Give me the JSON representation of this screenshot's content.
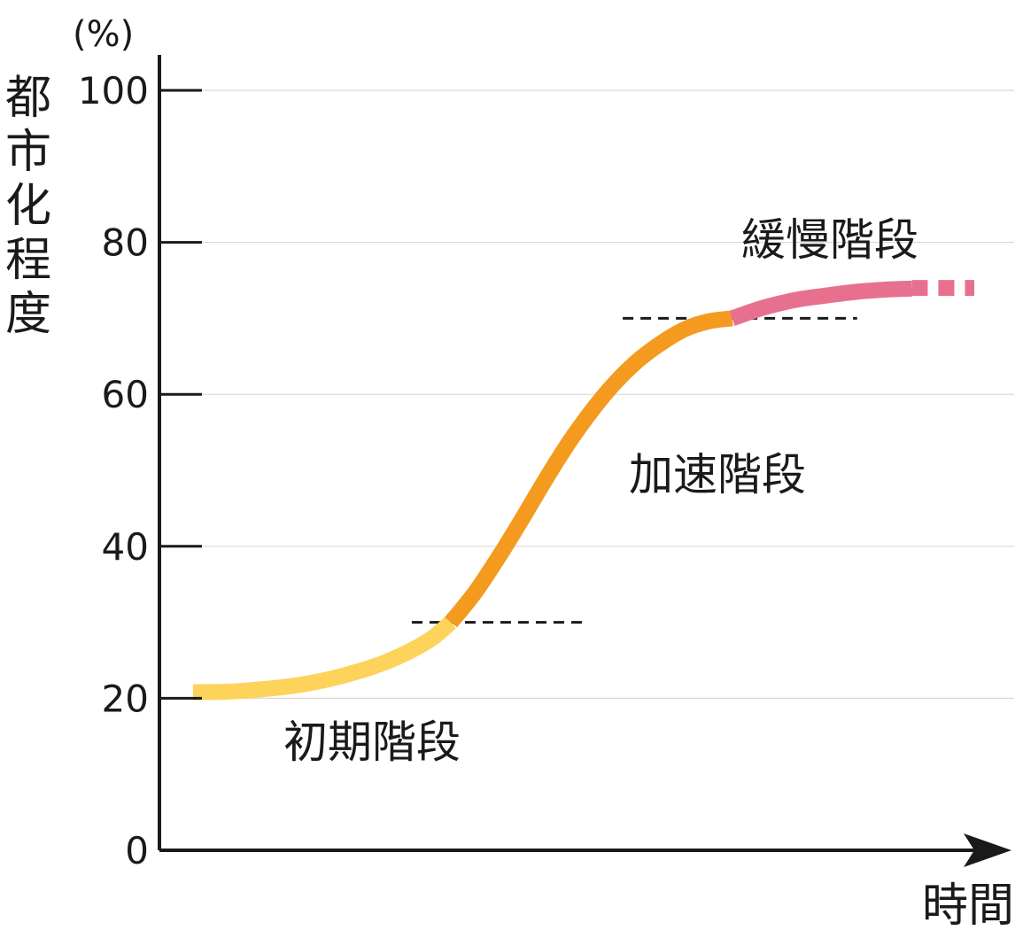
{
  "chart_data": {
    "type": "line",
    "ylabel": "都市化程度",
    "yunit": "(%)",
    "xlabel": "時間",
    "ylim": [
      0,
      100
    ],
    "yticks": [
      0,
      20,
      40,
      60,
      80,
      100
    ],
    "grid": true,
    "thresholds": [
      30,
      70
    ],
    "x": [
      0,
      2,
      4,
      6,
      8,
      10,
      12,
      14,
      16,
      18,
      20,
      22,
      24,
      26,
      28,
      30,
      32,
      34,
      36,
      38,
      40,
      42,
      44,
      46,
      48,
      50,
      52,
      54,
      56,
      58,
      60,
      62,
      64,
      66,
      68,
      70,
      72,
      74,
      76,
      78,
      80,
      82,
      84,
      86,
      88,
      90,
      92,
      94,
      96,
      98,
      100
    ],
    "series": [
      {
        "phase": "initial",
        "label": "初期階段",
        "color": "#fdd35c",
        "style": "solid",
        "x": [
          0,
          5,
          10,
          15,
          20,
          25,
          30,
          33
        ],
        "y": [
          20.8,
          20.9,
          21.3,
          22.0,
          23.2,
          24.9,
          27.5,
          30.0
        ]
      },
      {
        "phase": "accelerated",
        "label": "加速階段",
        "color": "#f39a1f",
        "style": "solid",
        "x": [
          33,
          36,
          39,
          42,
          45,
          48,
          51,
          54,
          57,
          60,
          63,
          66,
          69
        ],
        "y": [
          30.0,
          33.8,
          38.4,
          43.4,
          48.6,
          53.5,
          57.8,
          61.5,
          64.5,
          66.8,
          68.6,
          69.6,
          70.0
        ]
      },
      {
        "phase": "slow",
        "label": "緩慢階段",
        "color": "#e8708f",
        "style": "solid",
        "x": [
          69,
          73,
          77,
          81,
          85,
          89,
          92
        ],
        "y": [
          70.0,
          71.4,
          72.4,
          73.0,
          73.5,
          73.8,
          73.9
        ]
      },
      {
        "phase": "slow-continued",
        "color": "#e8708f",
        "style": "dashed",
        "x": [
          92,
          100
        ],
        "y": [
          74.0,
          74.0
        ]
      }
    ]
  }
}
